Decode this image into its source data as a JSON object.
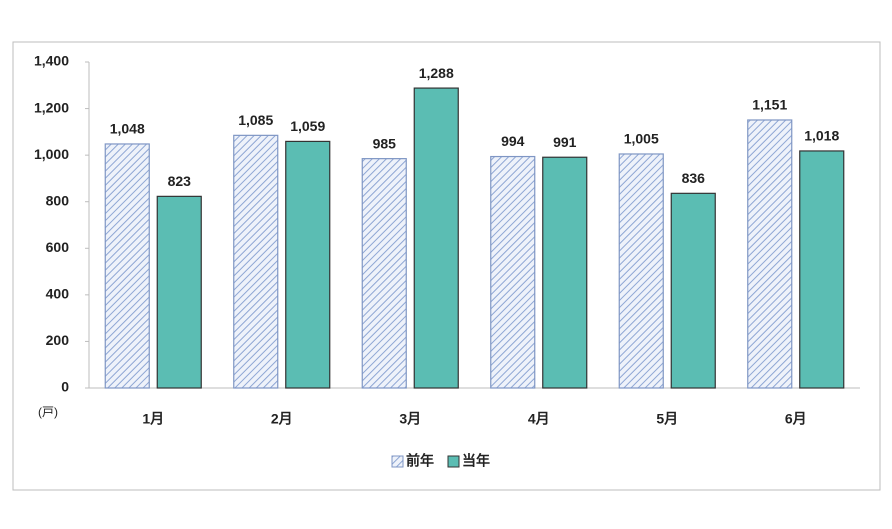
{
  "chart_data": {
    "type": "bar",
    "unit_label": "(戸)",
    "categories": [
      "1月",
      "2月",
      "3月",
      "4月",
      "5月",
      "6月"
    ],
    "series": [
      {
        "name": "前年",
        "color": "#dae3f3",
        "hatch": true,
        "values": [
          1048,
          1085,
          985,
          994,
          1005,
          1151
        ],
        "value_labels": [
          "1,048",
          "1,085",
          "985",
          "994",
          "1,005",
          "1,151"
        ]
      },
      {
        "name": "当年",
        "color": "#5bbdb3",
        "hatch": false,
        "values": [
          823,
          1059,
          1288,
          991,
          836,
          1018
        ],
        "value_labels": [
          "823",
          "1,059",
          "1,288",
          "991",
          "836",
          "1,018"
        ]
      }
    ],
    "ylim": [
      0,
      1400
    ],
    "yticks": [
      0,
      200,
      400,
      600,
      800,
      {
        "value": 1000,
        "label": "1,000"
      },
      {
        "value": 1200,
        "label": "1,200"
      },
      {
        "value": 1400,
        "label": "1,400"
      }
    ],
    "grid": false,
    "legend": "bottom"
  }
}
